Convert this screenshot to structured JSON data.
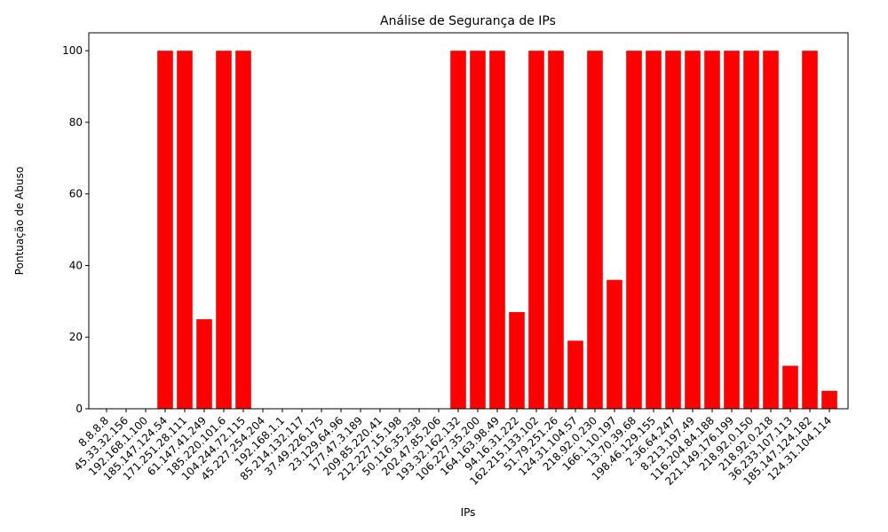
{
  "chart_data": {
    "type": "bar",
    "title": "Análise de Segurança de IPs",
    "x_label": "IPs",
    "y_label": "Pontuação de Abuso",
    "categories": [
      "8.8.8.8",
      "45.33.32.156",
      "192.168.1.100",
      "185.147.124.54",
      "171.251.28.111",
      "61.147.41.249",
      "185.220.101.6",
      "104.244.72.115",
      "45.227.254.204",
      "192.168.1.1",
      "85.214.132.117",
      "37.49.226.175",
      "23.129.64.96",
      "177.47.3.189",
      "209.85.220.41",
      "212.227.15.198",
      "50.116.35.238",
      "202.47.85.206",
      "193.32.162.132",
      "106.227.35.200",
      "164.163.98.49",
      "94.16.31.222",
      "162.215.133.102",
      "51.79.251.26",
      "124.31.104.57",
      "218.92.0.230",
      "166.1.10.197",
      "13.70.39.68",
      "198.46.129.155",
      "2.36.64.247",
      "8.213.197.49",
      "116.204.84.188",
      "221.149.176.199",
      "218.92.0.150",
      "218.92.0.218",
      "36.233.107.113",
      "185.147.124.182",
      "124.31.104.114"
    ],
    "values": [
      0,
      0,
      0,
      100,
      100,
      25,
      100,
      100,
      0,
      0,
      0,
      0,
      0,
      0,
      0,
      0,
      0,
      0,
      100,
      100,
      100,
      27,
      100,
      100,
      19,
      100,
      36,
      100,
      100,
      100,
      100,
      100,
      100,
      100,
      100,
      12,
      100,
      5
    ],
    "color": "#ff0000",
    "ylim": [
      0,
      105
    ],
    "yticks": [
      0,
      20,
      40,
      60,
      80,
      100
    ],
    "grid": false
  }
}
